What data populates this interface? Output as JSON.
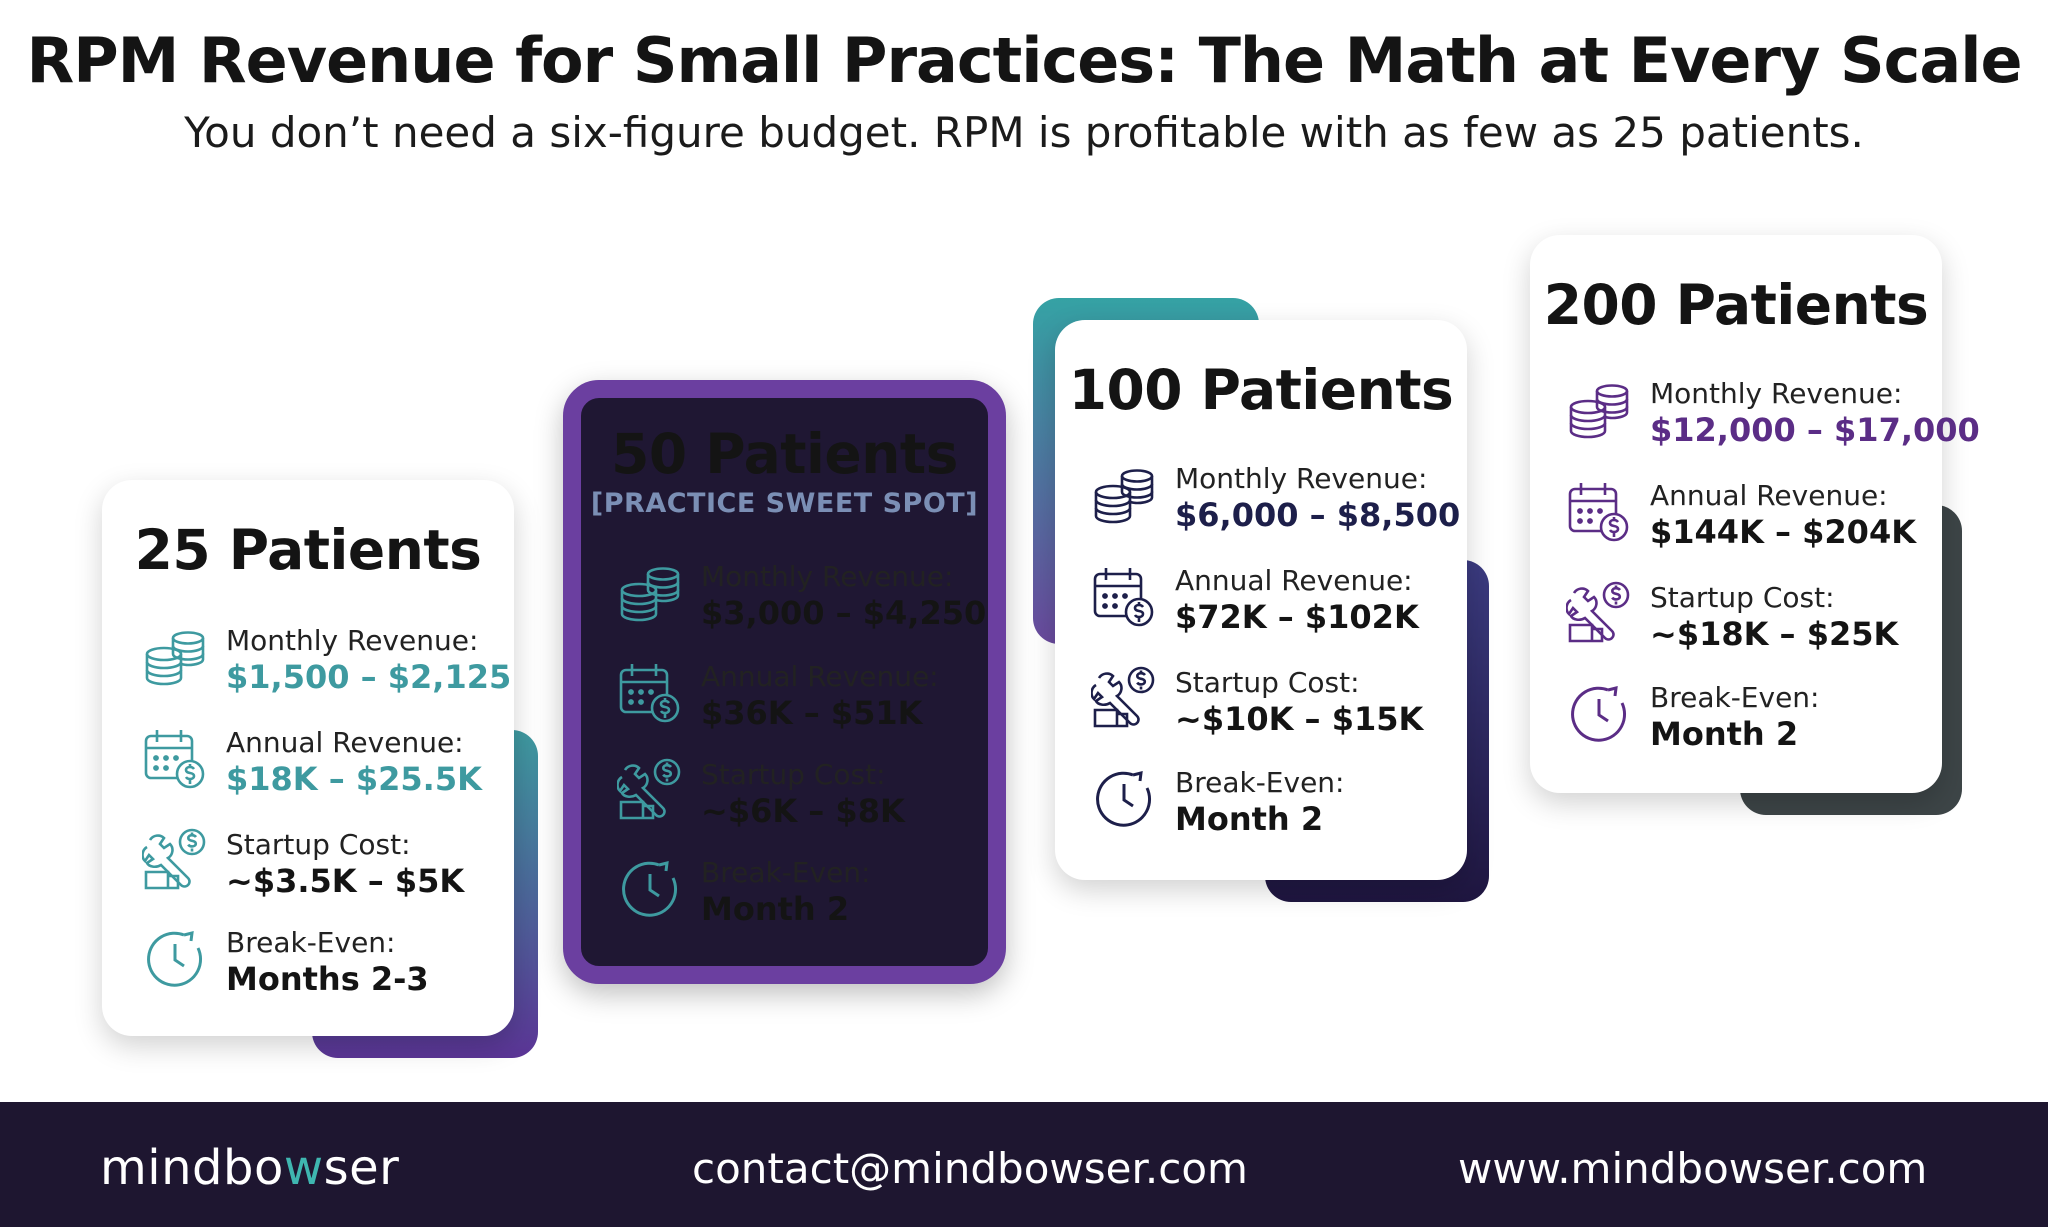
{
  "title": "RPM Revenue for Small Practices: The Math at Every Scale",
  "subtitle": "You don’t need a six-figure budget. RPM is profitable with as few as 25 patients.",
  "colors": {
    "teal": "#3e9aa0",
    "purple": "#6b3fa0",
    "dark_purple": "#5b2d86",
    "navy": "#1d1f4a",
    "dark_card": "#1f1733",
    "footer": "#1e1630",
    "charcoal": "#3d4547"
  },
  "cards": [
    {
      "heading": "25 Patients",
      "tag": "",
      "metrics": [
        {
          "icon": "coins-stack-icon",
          "label": "Monthly Revenue:",
          "value": "$1,500 – $2,125"
        },
        {
          "icon": "calendar-dollar-icon",
          "label": "Annual Revenue:",
          "value": "$18K – $25.5K"
        },
        {
          "icon": "tools-dollar-icon",
          "label": "Startup Cost:",
          "value": "~$3.5K – $5K"
        },
        {
          "icon": "clock-icon",
          "label": "Break-Even:",
          "value": "Months 2-3"
        }
      ]
    },
    {
      "heading": "50 Patients",
      "tag": "[PRACTICE SWEET SPOT]",
      "metrics": [
        {
          "icon": "coins-stack-icon",
          "label": "Monthly Revenue:",
          "value": "$3,000 – $4,250"
        },
        {
          "icon": "calendar-dollar-icon",
          "label": "Annual Revenue:",
          "value": "$36K – $51K"
        },
        {
          "icon": "tools-dollar-icon",
          "label": "Startup Cost:",
          "value": "~$6K – $8K"
        },
        {
          "icon": "clock-icon",
          "label": "Break-Even:",
          "value": "Month 2"
        }
      ]
    },
    {
      "heading": "100 Patients",
      "tag": "",
      "metrics": [
        {
          "icon": "coins-stack-icon",
          "label": "Monthly Revenue:",
          "value": "$6,000 – $8,500"
        },
        {
          "icon": "calendar-dollar-icon",
          "label": "Annual Revenue:",
          "value": "$72K – $102K"
        },
        {
          "icon": "tools-dollar-icon",
          "label": "Startup Cost:",
          "value": "~$10K – $15K"
        },
        {
          "icon": "clock-icon",
          "label": "Break-Even:",
          "value": "Month 2"
        }
      ]
    },
    {
      "heading": "200 Patients",
      "tag": "",
      "metrics": [
        {
          "icon": "coins-stack-icon",
          "label": "Monthly Revenue:",
          "value": "$12,000 – $17,000"
        },
        {
          "icon": "calendar-dollar-icon",
          "label": "Annual Revenue:",
          "value": "$144K – $204K"
        },
        {
          "icon": "tools-dollar-icon",
          "label": "Startup Cost:",
          "value": "~$18K – $25K"
        },
        {
          "icon": "clock-icon",
          "label": "Break-Even:",
          "value": "Month 2"
        }
      ]
    }
  ],
  "footer": {
    "brand_prefix": "mindbo",
    "brand_w": "w",
    "brand_suffix": "ser",
    "email": "contact@mindbowser.com",
    "website": "www.mindbowser.com"
  }
}
